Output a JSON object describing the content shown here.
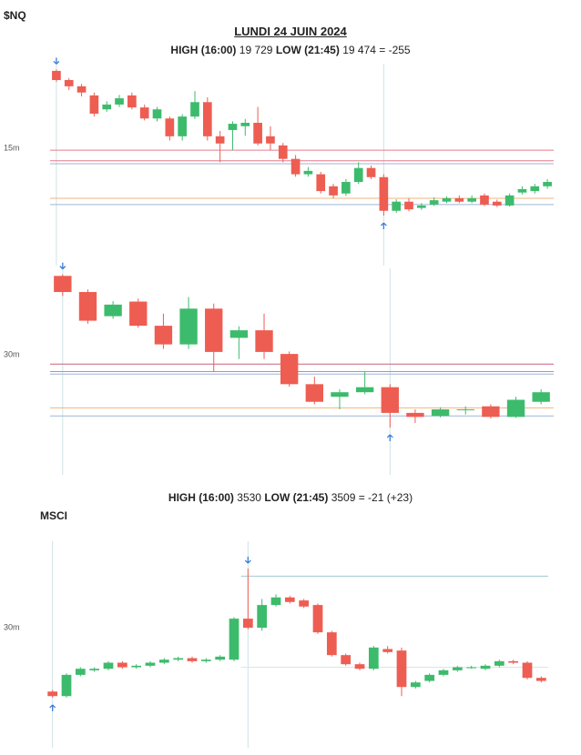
{
  "header": {
    "ticker": "$NQ",
    "date": "LUNDI 24 JUIN 2024",
    "nq_high_label": "HIGH (16:00)",
    "nq_high": "19 729",
    "nq_low_label": "LOW (21:45)",
    "nq_low": "19 474 = -255",
    "msci_high_label": "HIGH (16:00)",
    "msci_high": "3530",
    "msci_low_label": "LOW (21:45)",
    "msci_low": "3509 = -21 (+23)",
    "msci_ticker": "MSCI"
  },
  "chart_data": [
    {
      "type": "candlestick",
      "title": "15m",
      "ylim": [
        19370,
        19790
      ],
      "up_color": "#3dbb6c",
      "down_color": "#ee5d52",
      "levels": [
        {
          "value": 19610,
          "color": "#e57c8a"
        },
        {
          "value": 19588,
          "color": "#e57c8a"
        },
        {
          "value": 19582,
          "color": "#9fb6d8"
        },
        {
          "value": 19510,
          "color": "#f2b47a"
        },
        {
          "value": 19497,
          "color": "#9fb6d8"
        }
      ],
      "series": {
        "open": [
          19775,
          19756,
          19743,
          19724,
          19695,
          19705,
          19724,
          19699,
          19676,
          19676,
          19639,
          19680,
          19710,
          19639,
          19652,
          19660,
          19667,
          19639,
          19620,
          19592,
          19560,
          19560,
          19535,
          19520,
          19544,
          19573,
          19554,
          19484,
          19503,
          19490,
          19497,
          19503,
          19510,
          19503,
          19516,
          19503,
          19495,
          19522,
          19525,
          19535
        ],
        "high": [
          19778,
          19760,
          19748,
          19730,
          19712,
          19725,
          19730,
          19705,
          19700,
          19680,
          19685,
          19733,
          19720,
          19650,
          19670,
          19675,
          19700,
          19660,
          19625,
          19600,
          19575,
          19565,
          19540,
          19550,
          19585,
          19578,
          19560,
          19508,
          19510,
          19500,
          19512,
          19514,
          19516,
          19516,
          19520,
          19507,
          19520,
          19535,
          19540,
          19550
        ],
        "low": [
          19752,
          19735,
          19722,
          19680,
          19690,
          19700,
          19695,
          19672,
          19670,
          19630,
          19630,
          19675,
          19630,
          19585,
          19610,
          19640,
          19620,
          19610,
          19585,
          19555,
          19555,
          19520,
          19510,
          19515,
          19540,
          19550,
          19474,
          19480,
          19483,
          19486,
          19494,
          19500,
          19500,
          19500,
          19494,
          19492,
          19493,
          19518,
          19520,
          19530
        ],
        "close": [
          19756,
          19743,
          19730,
          19686,
          19705,
          19718,
          19699,
          19676,
          19695,
          19639,
          19680,
          19710,
          19639,
          19624,
          19665,
          19667,
          19624,
          19624,
          19592,
          19560,
          19567,
          19525,
          19516,
          19544,
          19573,
          19554,
          19484,
          19503,
          19487,
          19495,
          19506,
          19510,
          19503,
          19510,
          19497,
          19495,
          19516,
          19529,
          19535,
          19544
        ]
      }
    },
    {
      "type": "candlestick",
      "title": "30m",
      "ylim": [
        19380,
        19790
      ],
      "up_color": "#3dbb6c",
      "down_color": "#ee5d52",
      "levels": [
        {
          "value": 19600,
          "color": "#c9607a"
        },
        {
          "value": 19585,
          "color": "#e57c8a"
        },
        {
          "value": 19580,
          "color": "#9fb6d8"
        },
        {
          "value": 19513,
          "color": "#f2b47a"
        },
        {
          "value": 19497,
          "color": "#9fb6d8"
        }
      ],
      "series": {
        "open": [
          19775,
          19743,
          19695,
          19724,
          19676,
          19639,
          19710,
          19652,
          19667,
          19620,
          19560,
          19535,
          19544,
          19554,
          19503,
          19497,
          19510,
          19516,
          19495,
          19525
        ],
        "high": [
          19778,
          19748,
          19725,
          19730,
          19700,
          19733,
          19720,
          19675,
          19700,
          19625,
          19575,
          19550,
          19585,
          19560,
          19510,
          19514,
          19516,
          19520,
          19535,
          19550
        ],
        "low": [
          19735,
          19680,
          19690,
          19672,
          19630,
          19630,
          19585,
          19610,
          19610,
          19555,
          19520,
          19510,
          19540,
          19474,
          19483,
          19494,
          19500,
          19492,
          19493,
          19520
        ],
        "close": [
          19743,
          19686,
          19718,
          19676,
          19639,
          19710,
          19624,
          19667,
          19624,
          19560,
          19525,
          19544,
          19554,
          19503,
          19495,
          19510,
          19510,
          19495,
          19529,
          19544
        ]
      }
    },
    {
      "type": "candlestick",
      "title": "30m",
      "ylim": [
        3500.5,
        3534.5
      ],
      "up_color": "#3dbb6c",
      "down_color": "#ee5d52",
      "levels": [
        {
          "value": 3528.75,
          "color": "#9fc9cf"
        },
        {
          "value": 3513.75,
          "color": "#d9e6e6"
        }
      ],
      "series": {
        "open": [
          3509.75,
          3509,
          3512.5,
          3513.25,
          3513.5,
          3514.5,
          3513.75,
          3514,
          3514.5,
          3515,
          3515.25,
          3514.75,
          3515,
          3515,
          3521.75,
          3520.25,
          3524,
          3525.25,
          3524.75,
          3524,
          3519.5,
          3515.75,
          3514.25,
          3513.5,
          3516.75,
          3516.5,
          3510.5,
          3511.5,
          3512.5,
          3513.25,
          3513.75,
          3513.5,
          3514,
          3514.75,
          3514.5,
          3512
        ],
        "high": [
          3510,
          3512.75,
          3513.75,
          3513.75,
          3514.75,
          3514.75,
          3514.25,
          3514.75,
          3515.25,
          3515.5,
          3515.5,
          3515.25,
          3515.75,
          3522,
          3530,
          3525,
          3525.75,
          3525.5,
          3525,
          3524.25,
          3519.75,
          3516,
          3514.5,
          3517.25,
          3517.25,
          3517,
          3511.5,
          3512.75,
          3513.5,
          3514,
          3514,
          3514.25,
          3515,
          3515,
          3514.75,
          3512.25
        ],
        "low": [
          3508.75,
          3508.75,
          3512.25,
          3513,
          3513.25,
          3513.5,
          3513.5,
          3513.75,
          3514.25,
          3514.75,
          3514.5,
          3514.5,
          3514.75,
          3514.75,
          3520,
          3519.75,
          3523.75,
          3524.25,
          3523.5,
          3519.25,
          3515.5,
          3514,
          3513.25,
          3513.25,
          3516,
          3509,
          3510.25,
          3511.25,
          3512.25,
          3513,
          3513.5,
          3513.25,
          3513.75,
          3514.25,
          3511.75,
          3511.25
        ],
        "close": [
          3509,
          3512.5,
          3513.5,
          3513.5,
          3514.5,
          3513.75,
          3514,
          3514.5,
          3515,
          3515.25,
          3514.75,
          3515,
          3515.5,
          3521.75,
          3520.25,
          3524,
          3525.25,
          3524.5,
          3523.75,
          3519.5,
          3515.75,
          3514.25,
          3513.5,
          3517,
          3516.25,
          3510.5,
          3511.25,
          3512.5,
          3513.25,
          3513.75,
          3513.75,
          3514,
          3514.75,
          3514.5,
          3512,
          3511.5
        ]
      }
    }
  ]
}
